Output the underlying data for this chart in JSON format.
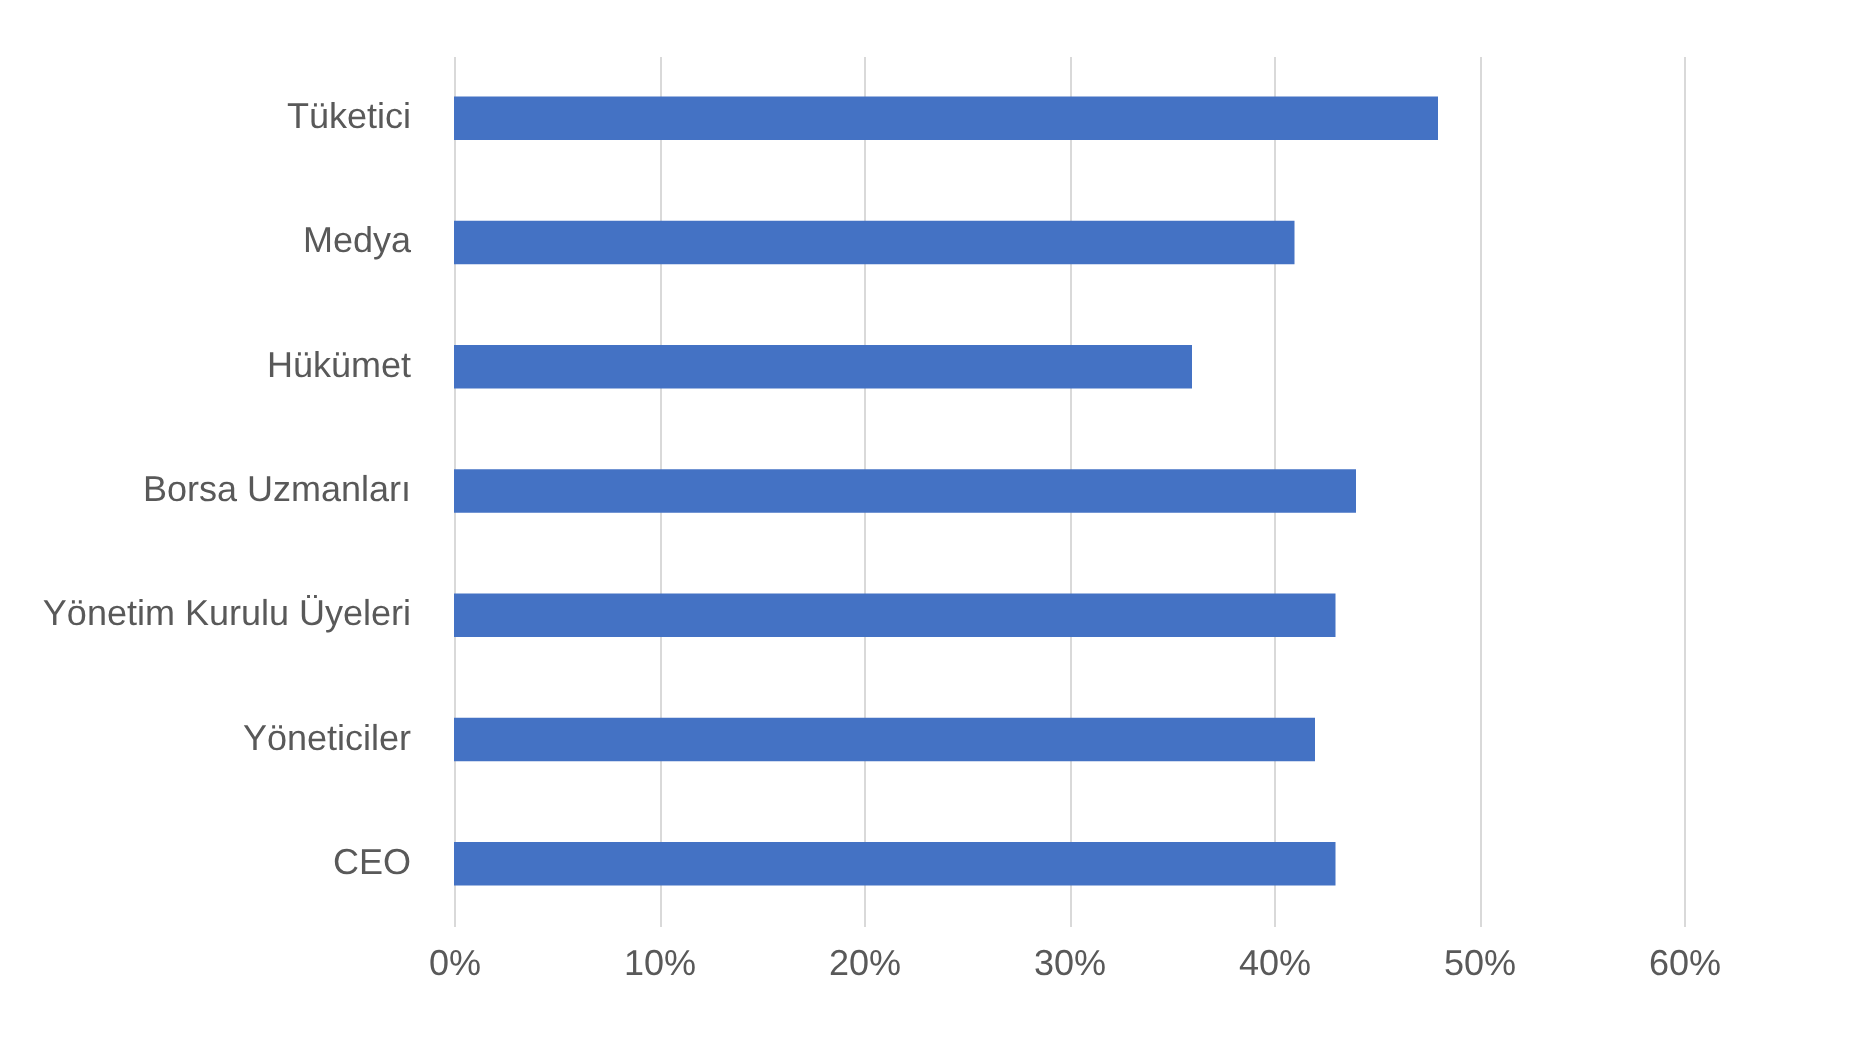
{
  "chart_data": {
    "type": "bar",
    "orientation": "horizontal",
    "categories": [
      "Tüketici",
      "Medya",
      "Hükümet",
      "Borsa Uzmanları",
      "Yönetim Kurulu Üyeleri",
      "Yöneticiler",
      "CEO"
    ],
    "values": [
      48,
      41,
      36,
      44,
      43,
      42,
      43
    ],
    "color": "#4472c4",
    "xlim": [
      0,
      60
    ],
    "xticks": [
      {
        "value": 0,
        "label": "0%"
      },
      {
        "value": 10,
        "label": "10%"
      },
      {
        "value": 20,
        "label": "20%"
      },
      {
        "value": 30,
        "label": "30%"
      },
      {
        "value": 40,
        "label": "40%"
      },
      {
        "value": 50,
        "label": "50%"
      },
      {
        "value": 60,
        "label": "60%"
      }
    ],
    "grid": "x"
  }
}
